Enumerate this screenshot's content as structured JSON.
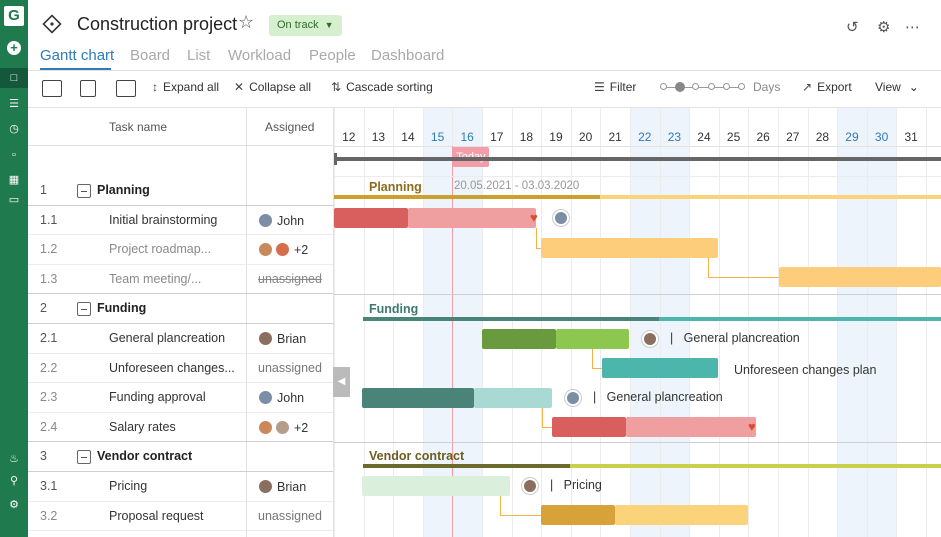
{
  "header": {
    "title": "Construction project",
    "status": "On track",
    "status_colors": {
      "bg": "#d6efcf",
      "fg": "#2f6b2a"
    }
  },
  "tabs": [
    {
      "label": "Gantt chart",
      "active": true
    },
    {
      "label": "Board"
    },
    {
      "label": "List"
    },
    {
      "label": "Workload"
    },
    {
      "label": "People"
    },
    {
      "label": "Dashboard"
    }
  ],
  "toolbar": {
    "expand_all": "Expand all",
    "collapse_all": "Collapse all",
    "cascade_sorting": "Cascade sorting",
    "filter": "Filter",
    "zoom_unit": "Days",
    "export": "Export",
    "view": "View"
  },
  "grid": {
    "col_task": "Task name",
    "col_assigned": "Assigned",
    "rows": [
      {
        "num": "1",
        "name": "Planning",
        "group": true
      },
      {
        "num": "1.1",
        "name": "Initial brainstorming",
        "assigned": "John"
      },
      {
        "num": "1.2",
        "name": "Project roadmap...",
        "assigned": "+2",
        "muted": true
      },
      {
        "num": "1.3",
        "name": "Team meeting/...",
        "assigned": "unassigned",
        "muted": true,
        "strike": true
      },
      {
        "num": "2",
        "name": "Funding",
        "group": true
      },
      {
        "num": "2.1",
        "name": "General plancreation",
        "assigned": "Brian"
      },
      {
        "num": "2.2",
        "name": "Unforeseen changes...",
        "assigned": "unassigned",
        "muted": true
      },
      {
        "num": "2.3",
        "name": "Funding approval",
        "assigned": "John",
        "muted": true
      },
      {
        "num": "2.4",
        "name": "Salary rates",
        "assigned": "+2",
        "muted": true
      },
      {
        "num": "3",
        "name": "Vendor contract",
        "group": true
      },
      {
        "num": "3.1",
        "name": "Pricing",
        "assigned": "Brian"
      },
      {
        "num": "3.2",
        "name": "Proposal request",
        "assigned": "unassigned",
        "muted": true
      }
    ]
  },
  "timeline": {
    "days": [
      "12",
      "13",
      "14",
      "15",
      "16",
      "17",
      "18",
      "19",
      "20",
      "21",
      "22",
      "23",
      "24",
      "25",
      "26",
      "27",
      "28",
      "29",
      "30",
      "31"
    ],
    "weekend_days": [
      "15",
      "16",
      "22",
      "23",
      "29",
      "30"
    ],
    "today_label": "Today",
    "today_day": "16",
    "group_labels": {
      "planning": "Planning",
      "planning_dates": "20.05.2021 - 03.03.2020",
      "funding": "Funding",
      "vendor": "Vendor contract"
    },
    "bar_labels": {
      "general_plancreation": "General plancreation",
      "unforeseen": "Unforeseen changes plan",
      "funding_approval_note": "General plancreation",
      "pricing": "Pricing"
    }
  },
  "colors": {
    "brand": "#1f7a4d",
    "accent": "#2d7bb8",
    "today": "#f19ea8",
    "red": "#d95f5f",
    "red_light": "#ef9f9f",
    "orange": "#fecd7c",
    "green_dark": "#6a9a3e",
    "green_light": "#8ec74f",
    "teal": "#4db6ac",
    "teal_dark": "#4a8479",
    "teal_light": "#a8d9d3",
    "mustard": "#d7a23a",
    "mustard_light": "#fbd37a",
    "vendor_light": "#dbf0dc"
  }
}
